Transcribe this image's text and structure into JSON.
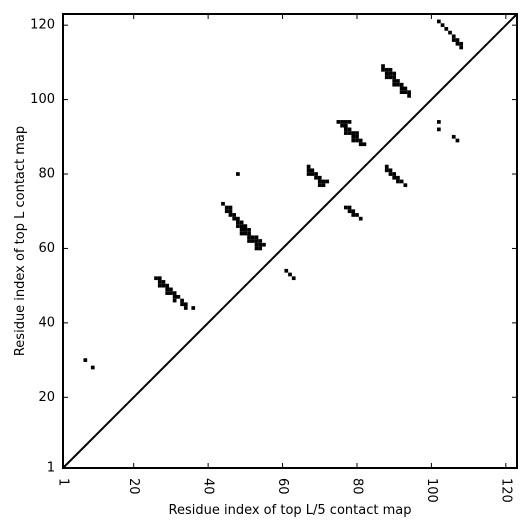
{
  "chart_data": {
    "type": "scatter",
    "title": "",
    "xlabel": "Residue index of top L/5 contact map",
    "ylabel": "Residue index of top L contact map",
    "xlim": [
      1,
      123
    ],
    "ylim": [
      1,
      123
    ],
    "xticks": [
      1,
      20,
      40,
      60,
      80,
      100,
      120
    ],
    "yticks": [
      1,
      20,
      40,
      60,
      80,
      100,
      120
    ],
    "x_tick_labels": [
      "1",
      "20",
      "40",
      "60",
      "80",
      "100",
      "120"
    ],
    "y_tick_labels": [
      "1",
      "20",
      "40",
      "60",
      "80",
      "100",
      "120"
    ],
    "grid": false,
    "diagonal": true,
    "series": [
      {
        "points": [
          [
            7,
            30
          ],
          [
            9,
            28
          ],
          [
            26,
            52
          ],
          [
            27,
            52
          ],
          [
            27,
            51
          ],
          [
            28,
            51
          ],
          [
            27,
            50
          ],
          [
            28,
            50
          ],
          [
            29,
            50
          ],
          [
            29,
            49
          ],
          [
            30,
            49
          ],
          [
            29,
            48
          ],
          [
            30,
            48
          ],
          [
            31,
            48
          ],
          [
            31,
            47
          ],
          [
            32,
            47
          ],
          [
            31,
            46
          ],
          [
            33,
            46
          ],
          [
            33,
            45
          ],
          [
            34,
            45
          ],
          [
            34,
            44
          ],
          [
            36,
            44
          ],
          [
            44,
            72
          ],
          [
            45,
            71
          ],
          [
            46,
            71
          ],
          [
            45,
            70
          ],
          [
            46,
            70
          ],
          [
            46,
            69
          ],
          [
            47,
            69
          ],
          [
            47,
            68
          ],
          [
            48,
            68
          ],
          [
            48,
            67
          ],
          [
            49,
            67
          ],
          [
            48,
            66
          ],
          [
            49,
            66
          ],
          [
            50,
            66
          ],
          [
            49,
            65
          ],
          [
            50,
            65
          ],
          [
            51,
            65
          ],
          [
            49,
            64
          ],
          [
            50,
            64
          ],
          [
            51,
            64
          ],
          [
            51,
            63
          ],
          [
            52,
            63
          ],
          [
            53,
            63
          ],
          [
            51,
            62
          ],
          [
            52,
            62
          ],
          [
            53,
            62
          ],
          [
            54,
            62
          ],
          [
            53,
            61
          ],
          [
            54,
            61
          ],
          [
            55,
            61
          ],
          [
            53,
            60
          ],
          [
            54,
            60
          ],
          [
            48,
            80
          ],
          [
            61,
            54
          ],
          [
            62,
            53
          ],
          [
            63,
            52
          ],
          [
            67,
            82
          ],
          [
            67,
            81
          ],
          [
            68,
            81
          ],
          [
            67,
            80
          ],
          [
            68,
            80
          ],
          [
            69,
            80
          ],
          [
            69,
            79
          ],
          [
            70,
            79
          ],
          [
            70,
            78
          ],
          [
            71,
            78
          ],
          [
            72,
            78
          ],
          [
            70,
            77
          ],
          [
            71,
            77
          ],
          [
            75,
            94
          ],
          [
            76,
            94
          ],
          [
            77,
            94
          ],
          [
            78,
            94
          ],
          [
            76,
            93
          ],
          [
            77,
            93
          ],
          [
            77,
            92
          ],
          [
            78,
            92
          ],
          [
            77,
            91
          ],
          [
            78,
            91
          ],
          [
            79,
            91
          ],
          [
            80,
            91
          ],
          [
            79,
            90
          ],
          [
            80,
            90
          ],
          [
            79,
            89
          ],
          [
            80,
            89
          ],
          [
            81,
            89
          ],
          [
            81,
            88
          ],
          [
            82,
            88
          ],
          [
            77,
            71
          ],
          [
            78,
            71
          ],
          [
            78,
            70
          ],
          [
            79,
            70
          ],
          [
            79,
            69
          ],
          [
            80,
            69
          ],
          [
            81,
            68
          ],
          [
            87,
            109
          ],
          [
            87,
            108
          ],
          [
            88,
            108
          ],
          [
            89,
            108
          ],
          [
            88,
            107
          ],
          [
            89,
            107
          ],
          [
            90,
            107
          ],
          [
            88,
            106
          ],
          [
            89,
            106
          ],
          [
            90,
            106
          ],
          [
            90,
            105
          ],
          [
            91,
            105
          ],
          [
            90,
            104
          ],
          [
            91,
            104
          ],
          [
            92,
            104
          ],
          [
            92,
            103
          ],
          [
            93,
            103
          ],
          [
            92,
            102
          ],
          [
            93,
            102
          ],
          [
            94,
            102
          ],
          [
            94,
            101
          ],
          [
            88,
            82
          ],
          [
            88,
            81
          ],
          [
            89,
            81
          ],
          [
            89,
            80
          ],
          [
            90,
            80
          ],
          [
            90,
            79
          ],
          [
            91,
            79
          ],
          [
            91,
            78
          ],
          [
            92,
            78
          ],
          [
            93,
            77
          ],
          [
            102,
            121
          ],
          [
            103,
            120
          ],
          [
            104,
            119
          ],
          [
            105,
            118
          ],
          [
            106,
            117
          ],
          [
            106,
            116
          ],
          [
            107,
            116
          ],
          [
            107,
            115
          ],
          [
            108,
            115
          ],
          [
            108,
            114
          ],
          [
            102,
            94
          ],
          [
            102,
            92
          ],
          [
            106,
            90
          ],
          [
            107,
            89
          ]
        ]
      }
    ]
  }
}
